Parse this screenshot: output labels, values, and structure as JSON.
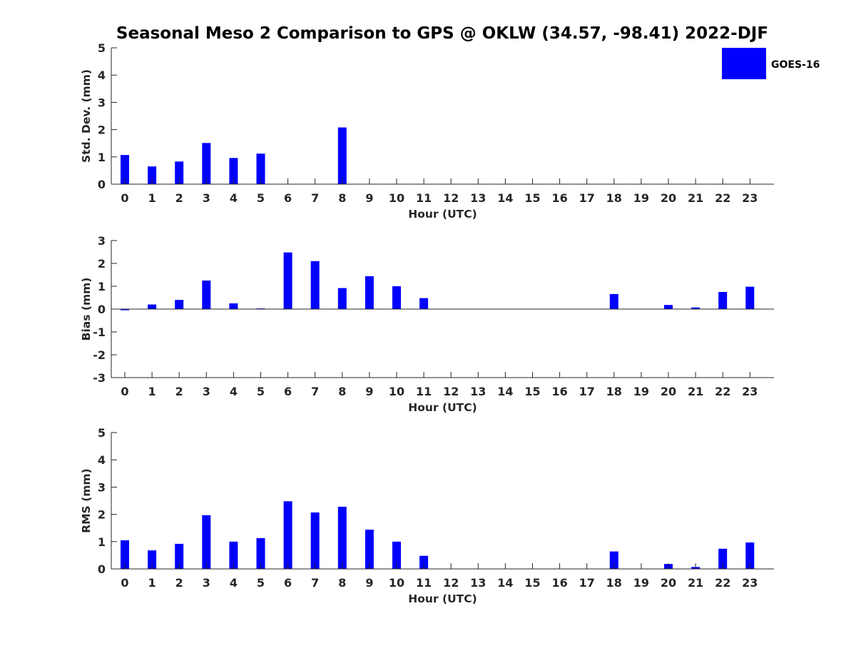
{
  "chart_data": {
    "type": "bar",
    "title": "Seasonal Meso 2 Comparison to GPS @ OKLW (34.57, -98.41) 2022-DJF",
    "legend": {
      "label": "GOES-16",
      "placement": "top-right"
    },
    "series_color": "#0000ff",
    "categories": [
      "0",
      "1",
      "2",
      "3",
      "4",
      "5",
      "6",
      "7",
      "8",
      "9",
      "10",
      "11",
      "12",
      "13",
      "14",
      "15",
      "16",
      "17",
      "18",
      "19",
      "20",
      "21",
      "22",
      "23"
    ],
    "panels": [
      {
        "ylabel": "Std. Dev. (mm)",
        "xlabel": "Hour (UTC)",
        "ylim": [
          0,
          5
        ],
        "yticks": [
          "0",
          "1",
          "2",
          "3",
          "4",
          "5"
        ],
        "zero_line": false,
        "series": [
          {
            "name": "GOES-16",
            "values": [
              1.07,
              0.65,
              0.83,
              1.51,
              0.96,
              1.12,
              null,
              null,
              2.08,
              null,
              null,
              null,
              null,
              null,
              null,
              null,
              null,
              null,
              null,
              null,
              null,
              null,
              null,
              null
            ]
          }
        ]
      },
      {
        "ylabel": "Bias (mm)",
        "xlabel": "Hour (UTC)",
        "ylim": [
          -3,
          3
        ],
        "yticks": [
          "-3",
          "-2",
          "-1",
          "0",
          "1",
          "2",
          "3"
        ],
        "zero_line": true,
        "series": [
          {
            "name": "GOES-16",
            "values": [
              -0.05,
              0.2,
              0.4,
              1.25,
              0.25,
              0.03,
              2.48,
              2.1,
              0.92,
              1.44,
              1.0,
              0.48,
              null,
              null,
              null,
              null,
              null,
              null,
              0.66,
              null,
              0.18,
              0.07,
              0.75,
              0.98
            ]
          }
        ]
      },
      {
        "ylabel": "RMS (mm)",
        "xlabel": "Hour (UTC)",
        "ylim": [
          0,
          5
        ],
        "yticks": [
          "0",
          "1",
          "2",
          "3",
          "4",
          "5"
        ],
        "zero_line": false,
        "series": [
          {
            "name": "GOES-16",
            "values": [
              1.05,
              0.68,
              0.92,
              1.97,
              1.0,
              1.13,
              2.48,
              2.07,
              2.28,
              1.44,
              1.0,
              0.48,
              null,
              null,
              null,
              null,
              null,
              null,
              0.64,
              null,
              0.18,
              0.07,
              0.74,
              0.97
            ]
          }
        ]
      }
    ]
  }
}
